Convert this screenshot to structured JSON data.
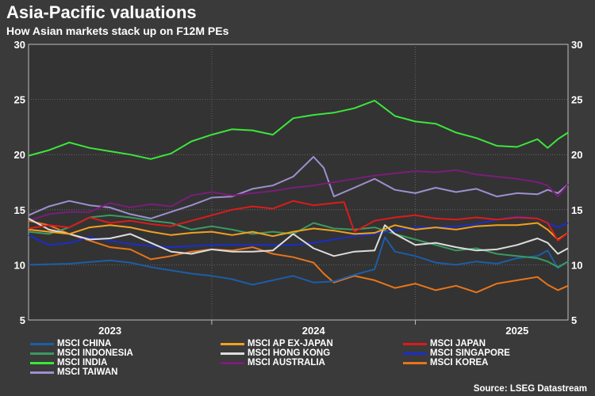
{
  "title": "Asia-Pacific valuations",
  "subtitle": "How Asian markets stack up on F12M PEs",
  "source": "Source: LSEG Datastream",
  "chart_data": {
    "type": "line",
    "title": "Asia-Pacific valuations",
    "subtitle": "How Asian markets stack up on F12M PEs",
    "xlabel": "",
    "ylabel": "",
    "ylim": [
      5,
      30
    ],
    "yticks": [
      5,
      10,
      15,
      20,
      25,
      30
    ],
    "xlim": [
      2022.6,
      2025.25
    ],
    "xticks": [
      {
        "label": "2023",
        "at": 2023.0
      },
      {
        "label": "2024",
        "at": 2024.0
      },
      {
        "label": "2025",
        "at": 2025.0
      }
    ],
    "year_boundaries": [
      2023.5,
      2024.5
    ],
    "series": [
      {
        "name": "MSCI CHINA",
        "color": "#1b5ea8",
        "x": [
          2022.6,
          2022.8,
          2023.0,
          2023.1,
          2023.2,
          2023.3,
          2023.4,
          2023.5,
          2023.6,
          2023.7,
          2023.8,
          2023.9,
          2024.0,
          2024.1,
          2024.2,
          2024.3,
          2024.35,
          2024.4,
          2024.5,
          2024.6,
          2024.7,
          2024.8,
          2024.9,
          2025.0,
          2025.1,
          2025.15,
          2025.2,
          2025.25
        ],
        "values": [
          10,
          10.1,
          10.4,
          10.2,
          9.8,
          9.5,
          9.2,
          9,
          8.7,
          8.2,
          8.6,
          9,
          8.4,
          8.5,
          9.1,
          9.6,
          12.5,
          11.2,
          10.8,
          10.2,
          10,
          10.3,
          10.1,
          10.6,
          10.8,
          11.3,
          9.7,
          10.3
        ]
      },
      {
        "name": "MSCI AP EX-JAPAN",
        "color": "#f2a11e",
        "x": [
          2022.6,
          2022.7,
          2022.8,
          2022.9,
          2023.0,
          2023.1,
          2023.2,
          2023.3,
          2023.4,
          2023.5,
          2023.6,
          2023.7,
          2023.8,
          2023.9,
          2024.0,
          2024.1,
          2024.2,
          2024.3,
          2024.4,
          2024.5,
          2024.6,
          2024.7,
          2024.8,
          2024.9,
          2025.0,
          2025.1,
          2025.15,
          2025.2,
          2025.25
        ],
        "values": [
          13.2,
          13,
          12.8,
          13.4,
          13.6,
          13.4,
          13,
          12.7,
          12.9,
          13,
          12.7,
          13,
          12.6,
          13,
          13.3,
          13.1,
          12.8,
          12.9,
          13.6,
          13.2,
          13.4,
          13.2,
          13.5,
          13.6,
          13.6,
          13.8,
          13.2,
          12.3,
          12.9
        ]
      },
      {
        "name": "MSCI JAPAN",
        "color": "#e01a1a",
        "x": [
          2022.6,
          2022.7,
          2022.8,
          2022.9,
          2023.0,
          2023.1,
          2023.2,
          2023.3,
          2023.4,
          2023.5,
          2023.6,
          2023.7,
          2023.8,
          2023.9,
          2024.0,
          2024.1,
          2024.15,
          2024.2,
          2024.3,
          2024.4,
          2024.5,
          2024.6,
          2024.7,
          2024.8,
          2024.9,
          2025.0,
          2025.1,
          2025.15,
          2025.2,
          2025.25
        ],
        "values": [
          13.3,
          13.6,
          13.4,
          14.3,
          13.8,
          14,
          13.7,
          13.5,
          14,
          14.5,
          15,
          15.3,
          15.1,
          15.8,
          15.4,
          15.6,
          15.7,
          13,
          14,
          14.3,
          14.5,
          14.2,
          14.1,
          14.3,
          14.1,
          14.3,
          14.2,
          13.8,
          12.2,
          12.9
        ]
      },
      {
        "name": "MSCI INDONESIA",
        "color": "#3a9a60",
        "x": [
          2022.6,
          2022.7,
          2022.8,
          2022.9,
          2023.0,
          2023.1,
          2023.2,
          2023.3,
          2023.4,
          2023.5,
          2023.6,
          2023.7,
          2023.8,
          2023.9,
          2024.0,
          2024.1,
          2024.2,
          2024.3,
          2024.4,
          2024.5,
          2024.6,
          2024.7,
          2024.8,
          2024.9,
          2025.0,
          2025.1,
          2025.15,
          2025.2,
          2025.25
        ],
        "values": [
          13,
          12.8,
          13.4,
          14.3,
          14.5,
          14.3,
          14,
          13.8,
          13.2,
          13.5,
          13.2,
          12.8,
          13,
          12.8,
          13.8,
          13.3,
          13.2,
          13.4,
          12.8,
          12.3,
          11.8,
          11.3,
          11.5,
          11,
          10.8,
          10.6,
          10.3,
          9.8,
          10.3
        ]
      },
      {
        "name": "MSCI HONG KONG",
        "color": "#dddddd",
        "x": [
          2022.6,
          2022.7,
          2022.8,
          2022.9,
          2023.0,
          2023.1,
          2023.2,
          2023.3,
          2023.4,
          2023.5,
          2023.6,
          2023.7,
          2023.8,
          2023.9,
          2024.0,
          2024.1,
          2024.2,
          2024.3,
          2024.35,
          2024.4,
          2024.5,
          2024.6,
          2024.7,
          2024.8,
          2024.9,
          2025.0,
          2025.1,
          2025.15,
          2025.2,
          2025.25
        ],
        "values": [
          14.2,
          13.2,
          12.8,
          12.3,
          12.4,
          12.8,
          12,
          11.2,
          11,
          11.4,
          11.2,
          11.2,
          11.3,
          12.8,
          11.5,
          10.8,
          11.2,
          11.3,
          13.6,
          12.8,
          11.8,
          12,
          11.6,
          11.3,
          11.4,
          11.8,
          12.4,
          12,
          11,
          11.5
        ]
      },
      {
        "name": "MSCI SINGAPORE",
        "color": "#1a2ec8",
        "x": [
          2022.6,
          2022.7,
          2022.8,
          2022.9,
          2023.0,
          2023.1,
          2023.2,
          2023.3,
          2023.4,
          2023.5,
          2023.6,
          2023.7,
          2023.8,
          2023.9,
          2024.0,
          2024.1,
          2024.2,
          2024.3,
          2024.4,
          2024.5,
          2024.6,
          2024.7,
          2024.8,
          2024.9,
          2025.0,
          2025.1,
          2025.15,
          2025.2,
          2025.25
        ],
        "values": [
          12.7,
          11.8,
          12,
          12.5,
          12.2,
          11.9,
          11.7,
          11.6,
          11.7,
          11.8,
          11.8,
          11.8,
          11.8,
          11.8,
          12,
          12.3,
          12.6,
          12.8,
          13.1,
          13.4,
          13.4,
          13.5,
          13.7,
          14.1,
          14.4,
          14.2,
          13.8,
          13.4,
          13.8
        ]
      },
      {
        "name": "MSCI INDIA",
        "color": "#3ce63c",
        "x": [
          2022.6,
          2022.7,
          2022.8,
          2022.9,
          2023.0,
          2023.1,
          2023.2,
          2023.3,
          2023.4,
          2023.5,
          2023.6,
          2023.7,
          2023.8,
          2023.9,
          2024.0,
          2024.1,
          2024.2,
          2024.3,
          2024.35,
          2024.4,
          2024.5,
          2024.6,
          2024.7,
          2024.8,
          2024.9,
          2025.0,
          2025.1,
          2025.15,
          2025.2,
          2025.25
        ],
        "values": [
          19.9,
          20.4,
          21.1,
          20.6,
          20.3,
          20,
          19.6,
          20.1,
          21.2,
          21.8,
          22.3,
          22.2,
          21.8,
          23.3,
          23.6,
          23.8,
          24.2,
          24.9,
          24.2,
          23.5,
          23,
          22.8,
          22,
          21.5,
          20.8,
          20.7,
          21.4,
          20.6,
          21.4,
          22
        ]
      },
      {
        "name": "MSCI AUSTRALIA",
        "color": "#7a1e7a",
        "x": [
          2022.6,
          2022.7,
          2022.8,
          2022.9,
          2023.0,
          2023.1,
          2023.2,
          2023.3,
          2023.4,
          2023.5,
          2023.6,
          2023.7,
          2023.8,
          2023.9,
          2024.0,
          2024.1,
          2024.2,
          2024.3,
          2024.4,
          2024.5,
          2024.6,
          2024.7,
          2024.8,
          2024.9,
          2025.0,
          2025.1,
          2025.15,
          2025.2,
          2025.25
        ],
        "values": [
          14,
          14.6,
          14.8,
          14.8,
          15.6,
          15.2,
          15.5,
          15.3,
          16.3,
          16.6,
          16.3,
          16.5,
          16.7,
          17,
          17.2,
          17.5,
          17.8,
          18.1,
          18.3,
          18.5,
          18.4,
          18.6,
          18.2,
          18,
          17.8,
          17.5,
          17.2,
          16.2,
          17.3
        ]
      },
      {
        "name": "MSCI KOREA",
        "color": "#e8751a",
        "x": [
          2022.6,
          2022.7,
          2022.8,
          2022.9,
          2023.0,
          2023.1,
          2023.2,
          2023.3,
          2023.4,
          2023.5,
          2023.6,
          2023.7,
          2023.8,
          2023.9,
          2024.0,
          2024.05,
          2024.1,
          2024.2,
          2024.3,
          2024.4,
          2024.5,
          2024.6,
          2024.7,
          2024.8,
          2024.9,
          2025.0,
          2025.1,
          2025.15,
          2025.2,
          2025.25
        ],
        "values": [
          14,
          13.6,
          12.8,
          12.2,
          11.6,
          11.4,
          10.5,
          10.8,
          11.2,
          11.4,
          11.3,
          11.6,
          11,
          10.7,
          10.2,
          9.2,
          8.4,
          9,
          8.6,
          7.9,
          8.3,
          7.7,
          8.1,
          7.5,
          8.3,
          8.6,
          8.9,
          8.2,
          7.7,
          8.1
        ]
      },
      {
        "name": "MSCI TAIWAN",
        "color": "#9f8fd0",
        "x": [
          2022.6,
          2022.7,
          2022.8,
          2022.9,
          2023.0,
          2023.1,
          2023.2,
          2023.3,
          2023.4,
          2023.5,
          2023.6,
          2023.7,
          2023.8,
          2023.9,
          2024.0,
          2024.05,
          2024.1,
          2024.2,
          2024.3,
          2024.4,
          2024.5,
          2024.6,
          2024.7,
          2024.8,
          2024.9,
          2025.0,
          2025.1,
          2025.15,
          2025.2,
          2025.25
        ],
        "values": [
          14.5,
          15.3,
          15.8,
          15.4,
          15.2,
          14.6,
          14.2,
          14.8,
          15.4,
          16.1,
          16.2,
          16.9,
          17.2,
          18,
          19.8,
          18.8,
          16.2,
          17,
          17.8,
          16.8,
          16.5,
          17,
          16.6,
          16.9,
          16.2,
          16.5,
          16.4,
          16.8,
          16.5,
          17.3
        ]
      }
    ]
  }
}
